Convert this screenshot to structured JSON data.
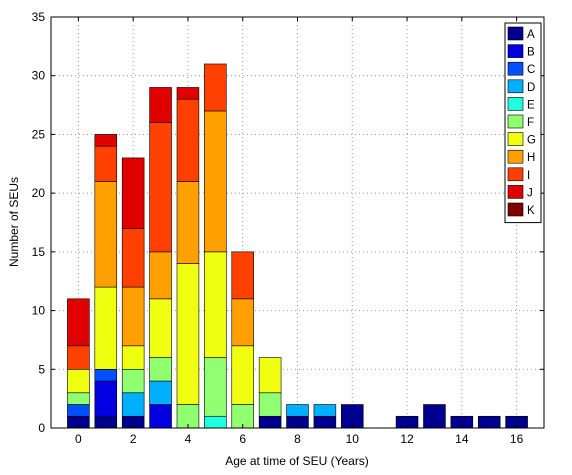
{
  "chart_data": {
    "type": "bar",
    "stacked": true,
    "xlabel": "Age at time of SEU (Years)",
    "ylabel": "Number of SEUs",
    "xlim": [
      -1,
      17
    ],
    "ylim": [
      0,
      35
    ],
    "grid": true,
    "legend_position": "top-right",
    "x": [
      0,
      1,
      2,
      3,
      4,
      5,
      6,
      7,
      8,
      9,
      10,
      11,
      12,
      13,
      14,
      15,
      16
    ],
    "xticks": [
      0,
      2,
      4,
      6,
      8,
      10,
      12,
      14,
      16
    ],
    "yticks": [
      0,
      5,
      10,
      15,
      20,
      25,
      30,
      35
    ],
    "series": [
      {
        "name": "A",
        "color": "#000090",
        "values": [
          1,
          1,
          1,
          0,
          0,
          0,
          0,
          1,
          1,
          1,
          2,
          0,
          1,
          2,
          1,
          1,
          1
        ]
      },
      {
        "name": "B",
        "color": "#0000E0",
        "values": [
          0,
          3,
          0,
          2,
          0,
          0,
          0,
          0,
          0,
          0,
          0,
          0,
          0,
          0,
          0,
          0,
          0
        ]
      },
      {
        "name": "C",
        "color": "#0050FF",
        "values": [
          1,
          1,
          0,
          0,
          0,
          0,
          0,
          0,
          0,
          0,
          0,
          0,
          0,
          0,
          0,
          0,
          0
        ]
      },
      {
        "name": "D",
        "color": "#00B0FF",
        "values": [
          0,
          0,
          2,
          2,
          0,
          0,
          0,
          0,
          1,
          1,
          0,
          0,
          0,
          0,
          0,
          0,
          0
        ]
      },
      {
        "name": "E",
        "color": "#20FFE0",
        "values": [
          0,
          0,
          0,
          0,
          0,
          1,
          0,
          0,
          0,
          0,
          0,
          0,
          0,
          0,
          0,
          0,
          0
        ]
      },
      {
        "name": "F",
        "color": "#90FF70",
        "values": [
          1,
          0,
          2,
          2,
          2,
          5,
          2,
          2,
          0,
          0,
          0,
          0,
          0,
          0,
          0,
          0,
          0
        ]
      },
      {
        "name": "G",
        "color": "#F0FF10",
        "values": [
          2,
          7,
          2,
          5,
          12,
          9,
          5,
          3,
          0,
          0,
          0,
          0,
          0,
          0,
          0,
          0,
          0
        ]
      },
      {
        "name": "H",
        "color": "#FFA000",
        "values": [
          0,
          9,
          5,
          4,
          7,
          12,
          4,
          0,
          0,
          0,
          0,
          0,
          0,
          0,
          0,
          0,
          0
        ]
      },
      {
        "name": "I",
        "color": "#FF4000",
        "values": [
          2,
          3,
          5,
          11,
          7,
          4,
          4,
          0,
          0,
          0,
          0,
          0,
          0,
          0,
          0,
          0,
          0
        ]
      },
      {
        "name": "J",
        "color": "#E00000",
        "values": [
          4,
          1,
          6,
          3,
          1,
          0,
          0,
          0,
          0,
          0,
          0,
          0,
          0,
          0,
          0,
          0,
          0
        ]
      },
      {
        "name": "K",
        "color": "#800000",
        "values": [
          0,
          0,
          0,
          0,
          0,
          0,
          0,
          0,
          0,
          0,
          0,
          0,
          0,
          0,
          0,
          0,
          0
        ]
      }
    ]
  }
}
